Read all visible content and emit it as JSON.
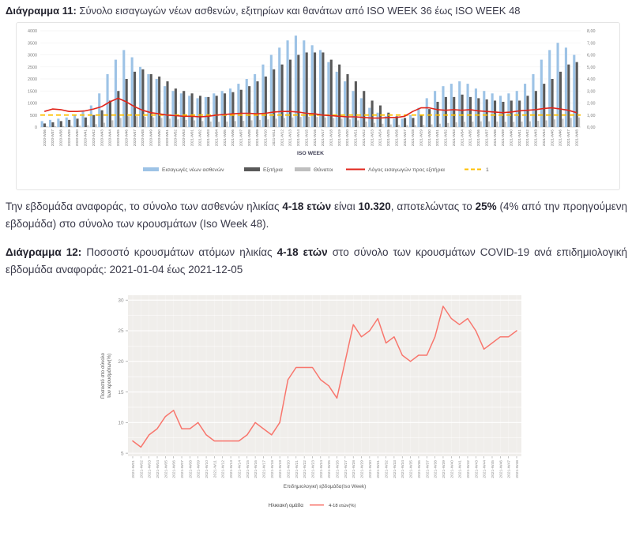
{
  "captions": {
    "fig11": [
      {
        "t": "Διάγραμμα 11:",
        "b": true
      },
      {
        "t": " Σύνολο εισαγωγών νέων ασθενών, εξιτηρίων και θανάτων από ISO WEEK 36 έως ISO WEEK 48",
        "b": false
      }
    ],
    "fig12": [
      {
        "t": "Διάγραμμα 12:",
        "b": true
      },
      {
        "t": " Ποσοστό κρουσμάτων ατόμων ηλικίας ",
        "b": false
      },
      {
        "t": "4-18 ετών",
        "b": true
      },
      {
        "t": " στο σύνολο των κρουσμάτων COVID-19 ανά επιδημιολογική εβδομάδα αναφοράς: 2021-01-04 έως 2021-12-05",
        "b": false
      }
    ]
  },
  "paragraph": [
    {
      "t": "Την εβδομάδα αναφοράς, το σύνολο των ασθενών ηλικίας ",
      "b": false
    },
    {
      "t": "4-18 ετών",
      "b": true
    },
    {
      "t": " είναι ",
      "b": false
    },
    {
      "t": "10.320",
      "b": true
    },
    {
      "t": ", αποτελώντας το ",
      "b": false
    },
    {
      "t": "25%",
      "b": true
    },
    {
      "t": " (4% από την προηγούμενη εβδομάδα) στο σύνολο των κρουσμάτων (Iso Week 48).",
      "b": false
    }
  ],
  "chart_data": [
    {
      "type": "bar+line-combo",
      "xlabel": "ISO WEEK",
      "legend_position": "bottom",
      "left_axis": {
        "min": 0,
        "max": 4000,
        "step": 500
      },
      "right_axis": {
        "min": 0,
        "max": 8,
        "step": 1,
        "tick_labels": [
          "0,00",
          "1,00",
          "2,00",
          "3,00",
          "4,00",
          "5,00",
          "6,00",
          "7,00",
          "8,00"
        ]
      },
      "categories": [
        "2020-W36",
        "2020-W37",
        "2020-W38",
        "2020-W39",
        "2020-W40",
        "2020-W41",
        "2020-W42",
        "2020-W43",
        "2020-W44",
        "2020-W45",
        "2020-W46",
        "2020-W47",
        "2020-W48",
        "2020-W49",
        "2020-W50",
        "2020-W51",
        "2020-W52",
        "2020-W53",
        "2021-W01",
        "2021-W02",
        "2021-W03",
        "2021-W04",
        "2021-W05",
        "2021-W06",
        "2021-W07",
        "2021-W08",
        "2021-W09",
        "2021-W10",
        "2021-W11",
        "2021-W12",
        "2021-W13",
        "2021-W14",
        "2021-W15",
        "2021-W16",
        "2021-W17",
        "2021-W18",
        "2021-W19",
        "2021-W20",
        "2021-W21",
        "2021-W22",
        "2021-W23",
        "2021-W24",
        "2021-W25",
        "2021-W26",
        "2021-W27",
        "2021-W28",
        "2021-W29",
        "2021-W30",
        "2021-W31",
        "2021-W32",
        "2021-W33",
        "2021-W34",
        "2021-W35",
        "2021-W36",
        "2021-W37",
        "2021-W38",
        "2021-W39",
        "2021-W40",
        "2021-W41",
        "2021-W42",
        "2021-W43",
        "2021-W44",
        "2021-W45",
        "2021-W46",
        "2021-W47",
        "2021-W48"
      ],
      "series": [
        {
          "name": "Εισαγωγές νέων ασθενών",
          "kind": "bar",
          "axis": "left",
          "color": "#9dc3e6",
          "values": [
            250,
            300,
            350,
            400,
            500,
            650,
            900,
            1400,
            2200,
            2800,
            3200,
            2900,
            2500,
            2200,
            2000,
            1700,
            1500,
            1400,
            1300,
            1200,
            1250,
            1400,
            1500,
            1600,
            1800,
            2000,
            2200,
            2600,
            3000,
            3300,
            3600,
            3800,
            3600,
            3400,
            3200,
            2700,
            2300,
            1900,
            1500,
            1200,
            800,
            600,
            450,
            350,
            350,
            500,
            800,
            1200,
            1500,
            1700,
            1800,
            1900,
            1800,
            1600,
            1500,
            1400,
            1300,
            1400,
            1500,
            1800,
            2200,
            2800,
            3200,
            3500,
            3300,
            3000
          ]
        },
        {
          "name": "Εξιτήρια",
          "kind": "bar",
          "axis": "left",
          "color": "#595959",
          "values": [
            150,
            200,
            250,
            300,
            350,
            400,
            500,
            700,
            1100,
            1500,
            2000,
            2300,
            2400,
            2200,
            2100,
            1900,
            1600,
            1500,
            1400,
            1300,
            1250,
            1300,
            1400,
            1450,
            1550,
            1700,
            1900,
            2100,
            2400,
            2600,
            2800,
            3000,
            3100,
            3100,
            3100,
            2800,
            2600,
            2200,
            1900,
            1500,
            1100,
            900,
            600,
            450,
            380,
            380,
            500,
            750,
            1050,
            1250,
            1250,
            1350,
            1250,
            1200,
            1150,
            1100,
            1050,
            1100,
            1100,
            1300,
            1500,
            1800,
            2000,
            2300,
            2600,
            2700
          ]
        },
        {
          "name": "Θάνατοι",
          "kind": "bar",
          "axis": "left",
          "color": "#bfbfbf",
          "values": [
            30,
            40,
            40,
            50,
            60,
            80,
            120,
            180,
            280,
            380,
            450,
            450,
            430,
            400,
            380,
            350,
            320,
            300,
            280,
            250,
            230,
            220,
            230,
            250,
            260,
            280,
            300,
            320,
            350,
            380,
            400,
            420,
            430,
            420,
            400,
            380,
            350,
            320,
            280,
            230,
            180,
            140,
            110,
            90,
            80,
            80,
            90,
            110,
            140,
            170,
            200,
            220,
            230,
            240,
            240,
            230,
            220,
            220,
            230,
            240,
            260,
            280,
            320,
            350,
            380,
            400
          ]
        },
        {
          "name": "Λόγος εισαγωγών προς εξιτήρια",
          "kind": "line",
          "axis": "right",
          "color": "#e1251b",
          "values": [
            1.3,
            1.5,
            1.45,
            1.3,
            1.3,
            1.35,
            1.5,
            1.7,
            2.1,
            2.4,
            2.1,
            1.7,
            1.4,
            1.2,
            1.1,
            1.0,
            0.95,
            0.9,
            0.9,
            0.85,
            0.9,
            1.0,
            1.05,
            1.1,
            1.15,
            1.15,
            1.1,
            1.15,
            1.25,
            1.3,
            1.3,
            1.25,
            1.15,
            1.1,
            1.0,
            0.95,
            0.9,
            0.85,
            0.85,
            0.8,
            0.75,
            0.75,
            0.8,
            0.8,
            0.9,
            1.3,
            1.6,
            1.6,
            1.45,
            1.4,
            1.45,
            1.4,
            1.45,
            1.35,
            1.3,
            1.25,
            1.2,
            1.25,
            1.35,
            1.4,
            1.45,
            1.55,
            1.6,
            1.5,
            1.4,
            1.2
          ]
        },
        {
          "name": "1",
          "kind": "reference-line",
          "axis": "right",
          "color": "#ffc000",
          "value": 1
        }
      ]
    },
    {
      "type": "line",
      "xlabel": "Επιδημιολογική εβδομάδα(Iso Week)",
      "ylabel": "Ποσοστό στο σύνολο των κρουσμάτων(%)",
      "ylabel_wrap": [
        "Ποσοστό στο σύνολο",
        "των κρουσμάτων(%)"
      ],
      "legend_title": "Ηλικιακή ομάδα",
      "legend_position": "bottom",
      "ylim": [
        5,
        30
      ],
      "yticks": [
        5,
        10,
        15,
        20,
        25,
        30
      ],
      "panel_bg": "#f0eeeb",
      "grid": "white-major-minor",
      "x": [
        "2021-W01",
        "2021-W02",
        "2021-W03",
        "2021-W04",
        "2021-W05",
        "2021-W06",
        "2021-W07",
        "2021-W08",
        "2021-W09",
        "2021-W10",
        "2021-W11",
        "2021-W12",
        "2021-W13",
        "2021-W14",
        "2021-W15",
        "2021-W16",
        "2021-W17",
        "2021-W18",
        "2021-W19",
        "2021-W20",
        "2021-W21",
        "2021-W22",
        "2021-W23",
        "2021-W24",
        "2021-W25",
        "2021-W26",
        "2021-W27",
        "2021-W28",
        "2021-W29",
        "2021-W30",
        "2021-W31",
        "2021-W32",
        "2021-W33",
        "2021-W34",
        "2021-W35",
        "2021-W36",
        "2021-W37",
        "2021-W38",
        "2021-W39",
        "2021-W40",
        "2021-W41",
        "2021-W42",
        "2021-W43",
        "2021-W44",
        "2021-W45",
        "2021-W46",
        "2021-W47",
        "2021-W48"
      ],
      "series": [
        {
          "name": "4-18 ετών(%)",
          "color": "#f8766d",
          "values": [
            7,
            6,
            8,
            9,
            11,
            12,
            9,
            9,
            10,
            8,
            7,
            7,
            7,
            7,
            8,
            10,
            9,
            8,
            10,
            17,
            19,
            19,
            19,
            17,
            16,
            14,
            20,
            26,
            24,
            25,
            27,
            23,
            24,
            21,
            20,
            21,
            21,
            24,
            29,
            27,
            26,
            27,
            25,
            22,
            23,
            24,
            24,
            25
          ]
        }
      ]
    }
  ]
}
